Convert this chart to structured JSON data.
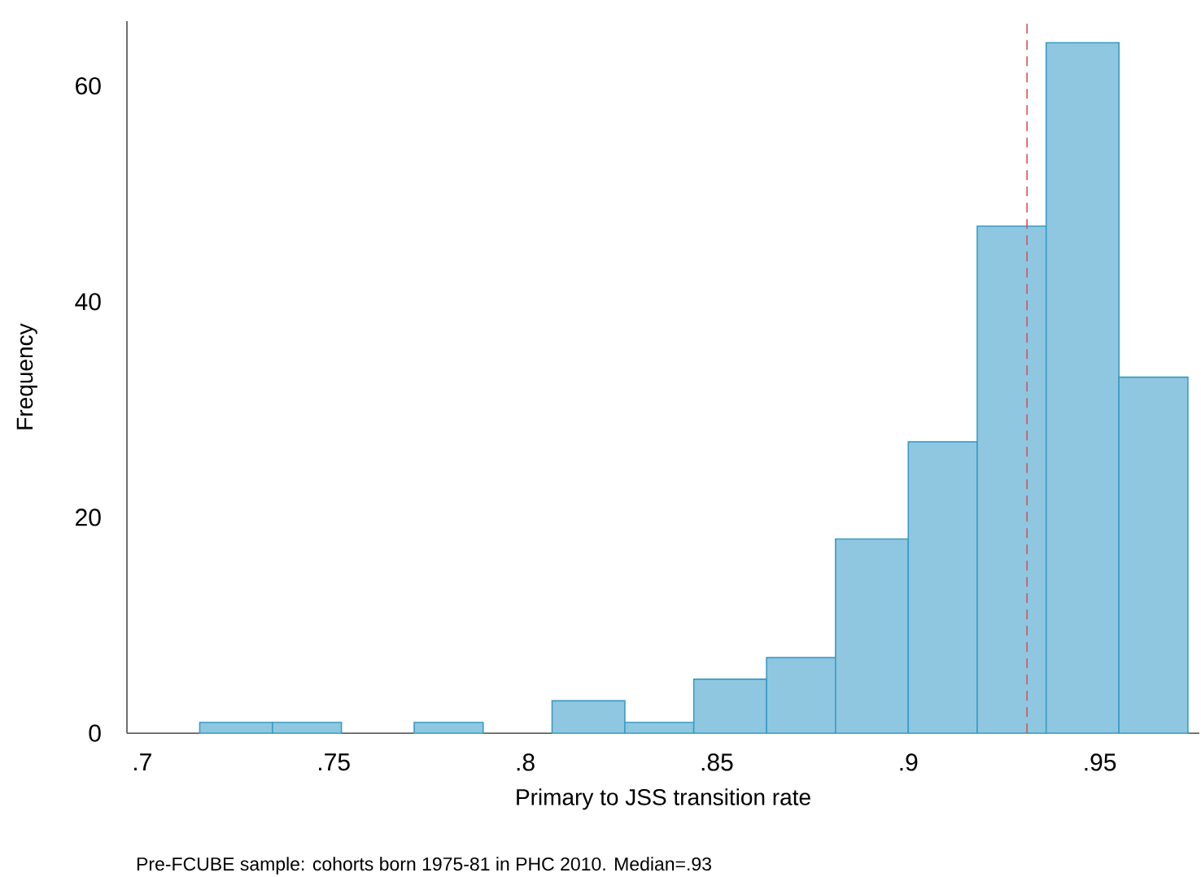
{
  "chart_data": {
    "type": "histogram",
    "xlabel": "Primary to JSS transition rate",
    "ylabel": "Frequency",
    "annotations": [
      "Pre-FCUBE sample: cohorts born 1975-81 in PHC 2010. Median=.93"
    ],
    "bins": [
      0.715,
      0.734,
      0.752,
      0.771,
      0.789,
      0.807,
      0.826,
      0.844,
      0.863,
      0.881,
      0.9,
      0.918,
      0.936,
      0.955,
      0.973
    ],
    "values": [
      1,
      1,
      0,
      1,
      0,
      3,
      1,
      5,
      7,
      18,
      27,
      47,
      64,
      33
    ],
    "color": "#8fc7e1",
    "xlim": [
      0.696,
      0.976
    ],
    "ylim": [
      0,
      66
    ],
    "xticks": [
      {
        "value": 0.7,
        "label": ".7"
      },
      {
        "value": 0.75,
        "label": ".75"
      },
      {
        "value": 0.8,
        "label": ".8"
      },
      {
        "value": 0.85,
        "label": ".85"
      },
      {
        "value": 0.9,
        "label": ".9"
      },
      {
        "value": 0.95,
        "label": ".95"
      }
    ],
    "yticks": [
      0,
      20,
      40,
      60
    ],
    "ref_lines": [
      {
        "axis": "x",
        "value": 0.931,
        "color": "#d9534f",
        "line_style": "dashed"
      }
    ],
    "grid": false
  }
}
